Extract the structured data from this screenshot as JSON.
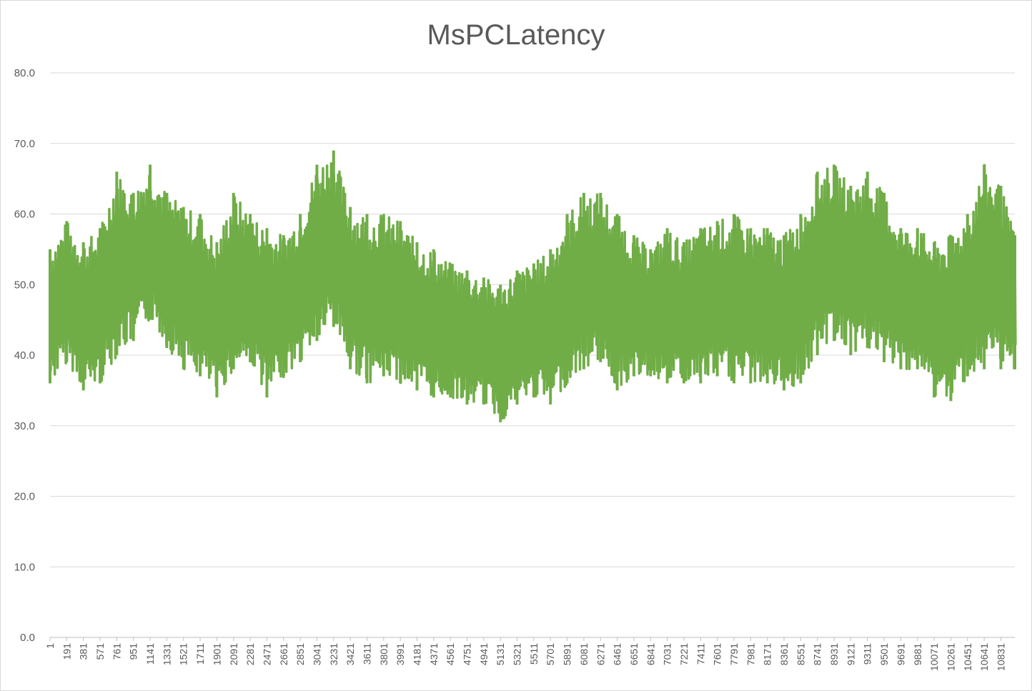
{
  "chart_data": {
    "type": "line",
    "title": "MsPCLatency",
    "xlabel": "",
    "ylabel": "",
    "ylim": [
      0,
      80
    ],
    "yticks": [
      "0.0",
      "10.0",
      "20.0",
      "30.0",
      "40.0",
      "50.0",
      "60.0",
      "70.0",
      "80.0"
    ],
    "xlim": [
      1,
      10990
    ],
    "xticks": [
      "1",
      "191",
      "381",
      "571",
      "761",
      "951",
      "1141",
      "1331",
      "1521",
      "1711",
      "1901",
      "2091",
      "2281",
      "2471",
      "2661",
      "2851",
      "3041",
      "3231",
      "3421",
      "3611",
      "3801",
      "3991",
      "4181",
      "4371",
      "4561",
      "4751",
      "4941",
      "5131",
      "5321",
      "5511",
      "5701",
      "5891",
      "6081",
      "6271",
      "6461",
      "6651",
      "6841",
      "7031",
      "7221",
      "7411",
      "7601",
      "7791",
      "7981",
      "8171",
      "8361",
      "8551",
      "8741",
      "8931",
      "9121",
      "9311",
      "9501",
      "9691",
      "9881",
      "10071",
      "10261",
      "10451",
      "10641",
      "10831"
    ],
    "grid": true,
    "legend": "none",
    "series": [
      {
        "color": "#70ad47",
        "x": [
          1,
          191,
          381,
          571,
          761,
          951,
          1141,
          1331,
          1521,
          1711,
          1901,
          2091,
          2281,
          2471,
          2661,
          2851,
          3041,
          3231,
          3421,
          3611,
          3801,
          3991,
          4181,
          4371,
          4561,
          4751,
          4941,
          5131,
          5321,
          5511,
          5701,
          5891,
          6081,
          6271,
          6461,
          6651,
          6841,
          7031,
          7221,
          7411,
          7601,
          7791,
          7981,
          8171,
          8361,
          8551,
          8741,
          8931,
          9121,
          9311,
          9501,
          9691,
          9881,
          10071,
          10261,
          10451,
          10641,
          10831,
          10990
        ],
        "high": [
          55.0,
          59.0,
          56.0,
          58.0,
          66.0,
          63.0,
          67.0,
          63.0,
          61.0,
          60.0,
          56.0,
          63.0,
          60.0,
          58.0,
          57.0,
          60.0,
          67.0,
          69.0,
          61.0,
          60.0,
          60.0,
          59.0,
          56.0,
          55.0,
          53.0,
          52.0,
          51.0,
          50.0,
          52.0,
          53.0,
          55.0,
          60.0,
          63.0,
          63.0,
          60.0,
          57.0,
          55.0,
          58.0,
          56.0,
          58.0,
          59.0,
          60.0,
          58.0,
          58.0,
          57.0,
          60.0,
          66.0,
          67.0,
          64.0,
          66.0,
          63.0,
          58.0,
          58.0,
          56.0,
          57.0,
          60.0,
          67.0,
          64.0,
          57.0
        ],
        "low": [
          36.0,
          39.0,
          35.0,
          36.0,
          40.0,
          42.0,
          45.0,
          41.0,
          38.0,
          37.0,
          34.0,
          38.0,
          39.0,
          34.0,
          37.0,
          39.0,
          42.0,
          44.0,
          38.0,
          36.0,
          37.0,
          36.0,
          35.0,
          34.0,
          34.0,
          33.0,
          33.0,
          30.5,
          33.0,
          34.0,
          33.0,
          36.0,
          38.0,
          39.0,
          35.0,
          37.0,
          37.0,
          36.0,
          36.0,
          36.0,
          37.0,
          36.0,
          36.0,
          36.0,
          35.0,
          36.0,
          40.0,
          42.0,
          40.0,
          41.0,
          39.0,
          38.0,
          38.0,
          34.0,
          33.5,
          37.0,
          38.0,
          38.0,
          38.0
        ]
      }
    ]
  }
}
